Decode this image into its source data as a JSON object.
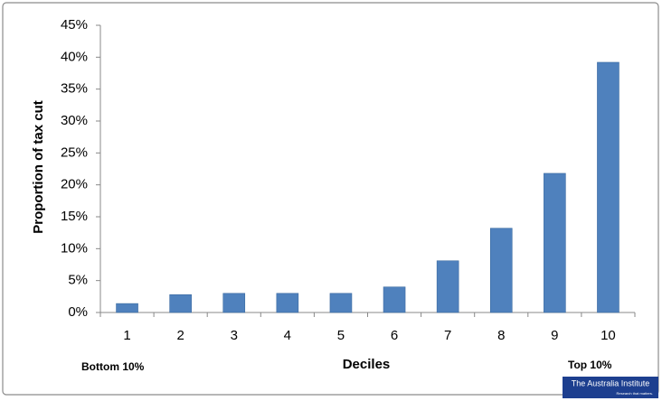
{
  "chart_data": {
    "type": "bar",
    "y_axis_label": "Proportion of tax cut",
    "x_axis_label": "Deciles",
    "annotations": [
      "Bottom 10%",
      "Top 10%"
    ],
    "categories": [
      "1",
      "2",
      "3",
      "4",
      "5",
      "6",
      "7",
      "8",
      "9",
      "10"
    ],
    "values": [
      1.4,
      2.8,
      3.0,
      3.0,
      3.0,
      4.0,
      8.1,
      13.2,
      21.8,
      39.2
    ],
    "color": "#4f81bd",
    "ylim": [
      0,
      45
    ],
    "yticks": [
      {
        "value": 0,
        "label": "0%"
      },
      {
        "value": 5,
        "label": "5%"
      },
      {
        "value": 10,
        "label": "10%"
      },
      {
        "value": 15,
        "label": "15%"
      },
      {
        "value": 20,
        "label": "20%"
      },
      {
        "value": 25,
        "label": "25%"
      },
      {
        "value": 30,
        "label": "30%"
      },
      {
        "value": 35,
        "label": "35%"
      },
      {
        "value": 40,
        "label": "40%"
      },
      {
        "value": 45,
        "label": "45%"
      }
    ],
    "grid": false,
    "logo": {
      "name": "The Australia Institute",
      "tagline": "Research that matters."
    }
  }
}
